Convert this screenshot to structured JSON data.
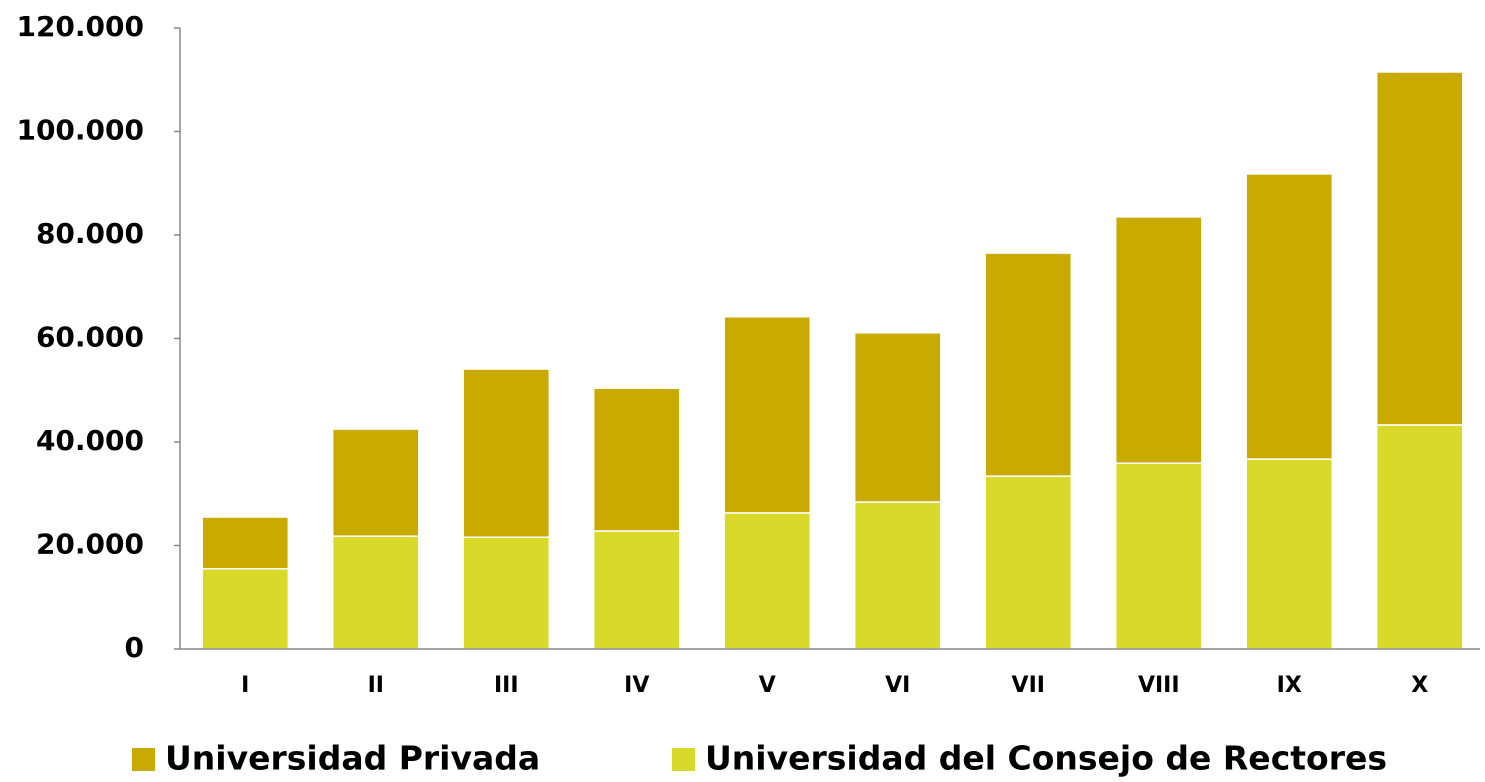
{
  "chart_data": {
    "type": "stacked_bar",
    "categories": [
      "I",
      "II",
      "III",
      "IV",
      "V",
      "VI",
      "VII",
      "VIII",
      "IX",
      "X"
    ],
    "series": [
      {
        "name": "Universidad del Consejo de Rectores",
        "color": "#d9d92a",
        "values": [
          15500,
          21800,
          21600,
          22800,
          26300,
          28400,
          33400,
          35900,
          36700,
          43300
        ]
      },
      {
        "name": "Universidad Privada",
        "color": "#c8aa00",
        "values": [
          10000,
          20700,
          32500,
          27600,
          37900,
          32700,
          43100,
          47600,
          55100,
          68200
        ]
      }
    ],
    "legend_order": [
      1,
      0
    ],
    "ylim": [
      0,
      120000
    ],
    "yticks": [
      0,
      {
        "value": 20000,
        "label": "20.000"
      },
      {
        "value": 40000,
        "label": "40.000"
      },
      {
        "value": 60000,
        "label": "60.000"
      },
      {
        "value": 80000,
        "label": "80.000"
      },
      {
        "value": 100000,
        "label": "100.000"
      },
      {
        "value": 120000,
        "label": "120.000"
      }
    ],
    "grid": false
  }
}
